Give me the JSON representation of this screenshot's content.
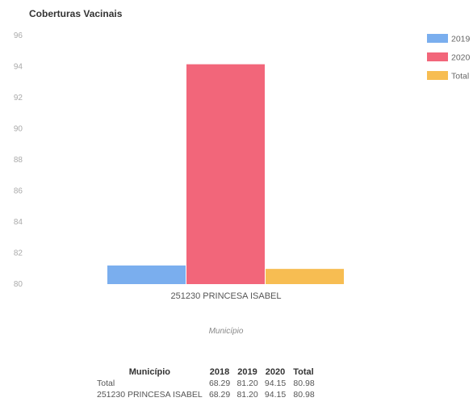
{
  "chart_data": {
    "type": "bar",
    "title": "Coberturas Vacinais",
    "xlabel": "Município",
    "ylabel": "",
    "ylim": [
      80,
      96
    ],
    "yticks": [
      80,
      82,
      84,
      86,
      88,
      90,
      92,
      94,
      96
    ],
    "categories": [
      "251230 PRINCESA ISABEL"
    ],
    "series": [
      {
        "name": "2019",
        "values": [
          81.2
        ],
        "color": "#7aaeee"
      },
      {
        "name": "2020",
        "values": [
          94.15
        ],
        "color": "#f2667a"
      },
      {
        "name": "Total",
        "values": [
          80.98
        ],
        "color": "#f7bd52"
      }
    ],
    "legend_position": "top-right",
    "grid": false
  },
  "table": {
    "headers": [
      "Município",
      "2018",
      "2019",
      "2020",
      "Total"
    ],
    "rows": [
      {
        "name": "Total",
        "values": [
          "68.29",
          "81.20",
          "94.15",
          "80.98"
        ]
      },
      {
        "name": "251230 PRINCESA ISABEL",
        "values": [
          "68.29",
          "81.20",
          "94.15",
          "80.98"
        ]
      }
    ]
  }
}
